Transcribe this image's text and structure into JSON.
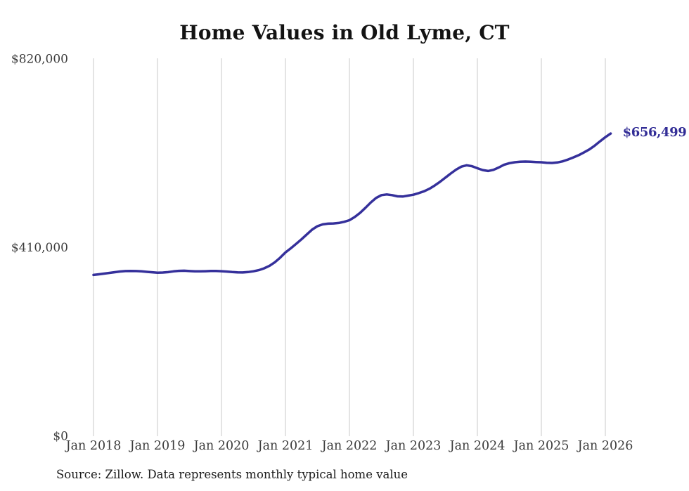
{
  "colors": {
    "background": "#ffffff",
    "line": "#35309b",
    "end_label": "#322d96",
    "gridline": "#c9c9c9",
    "tick_text": "#3c3c3c",
    "title_text": "#131313",
    "source_text": "#1c1c1c"
  },
  "chart_data": {
    "type": "line",
    "title": "Home Values in Old Lyme, CT",
    "series_name": "Typical home value",
    "xlabel": "",
    "ylabel": "",
    "grid": "vertical-only",
    "legend": "none",
    "ylim": [
      0,
      820000
    ],
    "yticks": [
      {
        "label": "$0",
        "value": 0
      },
      {
        "label": "$410,000",
        "value": 410000
      },
      {
        "label": "$820,000",
        "value": 820000
      }
    ],
    "categories": [
      "Jan 2018",
      "Jan 2019",
      "Jan 2020",
      "Jan 2021",
      "Jan 2022",
      "Jan 2023",
      "Jan 2024",
      "Jan 2025",
      "Jan 2026"
    ],
    "x": [
      "2018-01",
      "2018-02",
      "2018-03",
      "2018-04",
      "2018-05",
      "2018-06",
      "2018-07",
      "2018-08",
      "2018-09",
      "2018-10",
      "2018-11",
      "2018-12",
      "2019-01",
      "2019-02",
      "2019-03",
      "2019-04",
      "2019-05",
      "2019-06",
      "2019-07",
      "2019-08",
      "2019-09",
      "2019-10",
      "2019-11",
      "2019-12",
      "2020-01",
      "2020-02",
      "2020-03",
      "2020-04",
      "2020-05",
      "2020-06",
      "2020-07",
      "2020-08",
      "2020-09",
      "2020-10",
      "2020-11",
      "2020-12",
      "2021-01",
      "2021-02",
      "2021-03",
      "2021-04",
      "2021-05",
      "2021-06",
      "2021-07",
      "2021-08",
      "2021-09",
      "2021-10",
      "2021-11",
      "2021-12",
      "2022-01",
      "2022-02",
      "2022-03",
      "2022-04",
      "2022-05",
      "2022-06",
      "2022-07",
      "2022-08",
      "2022-09",
      "2022-10",
      "2022-11",
      "2022-12",
      "2023-01",
      "2023-02",
      "2023-03",
      "2023-04",
      "2023-05",
      "2023-06",
      "2023-07",
      "2023-08",
      "2023-09",
      "2023-10",
      "2023-11",
      "2023-12",
      "2024-01",
      "2024-02",
      "2024-03",
      "2024-04",
      "2024-05",
      "2024-06",
      "2024-07",
      "2024-08",
      "2024-09",
      "2024-10",
      "2024-11",
      "2024-12",
      "2025-01",
      "2025-02",
      "2025-03",
      "2025-04",
      "2025-05",
      "2025-06",
      "2025-07",
      "2025-08",
      "2025-09",
      "2025-10",
      "2025-11",
      "2025-12",
      "2026-01",
      "2026-02"
    ],
    "values": [
      349000,
      350500,
      352000,
      353500,
      355000,
      356500,
      357500,
      357800,
      357500,
      356800,
      355800,
      354800,
      354000,
      354300,
      355200,
      356800,
      358000,
      358200,
      357500,
      356800,
      356800,
      357200,
      357600,
      357600,
      357200,
      356400,
      355300,
      354500,
      354400,
      355300,
      357000,
      359500,
      363500,
      369000,
      376500,
      386500,
      398000,
      407000,
      416500,
      426500,
      437000,
      447500,
      455000,
      459000,
      460500,
      461000,
      462000,
      464500,
      468000,
      475000,
      484000,
      495000,
      506500,
      516500,
      522500,
      524000,
      522500,
      520000,
      519500,
      521500,
      523500,
      527000,
      531000,
      536500,
      543500,
      551500,
      560500,
      569500,
      578000,
      584500,
      587500,
      585500,
      581000,
      577000,
      575000,
      577500,
      582500,
      588500,
      592000,
      594000,
      595000,
      595500,
      595000,
      594500,
      594000,
      593000,
      592500,
      593500,
      596000,
      600000,
      604500,
      609500,
      615500,
      622000,
      630000,
      639500,
      648500,
      656499
    ],
    "last_value": 656499,
    "last_value_label": "$656,499",
    "source_note": "Source: Zillow. Data represents monthly typical home value"
  }
}
